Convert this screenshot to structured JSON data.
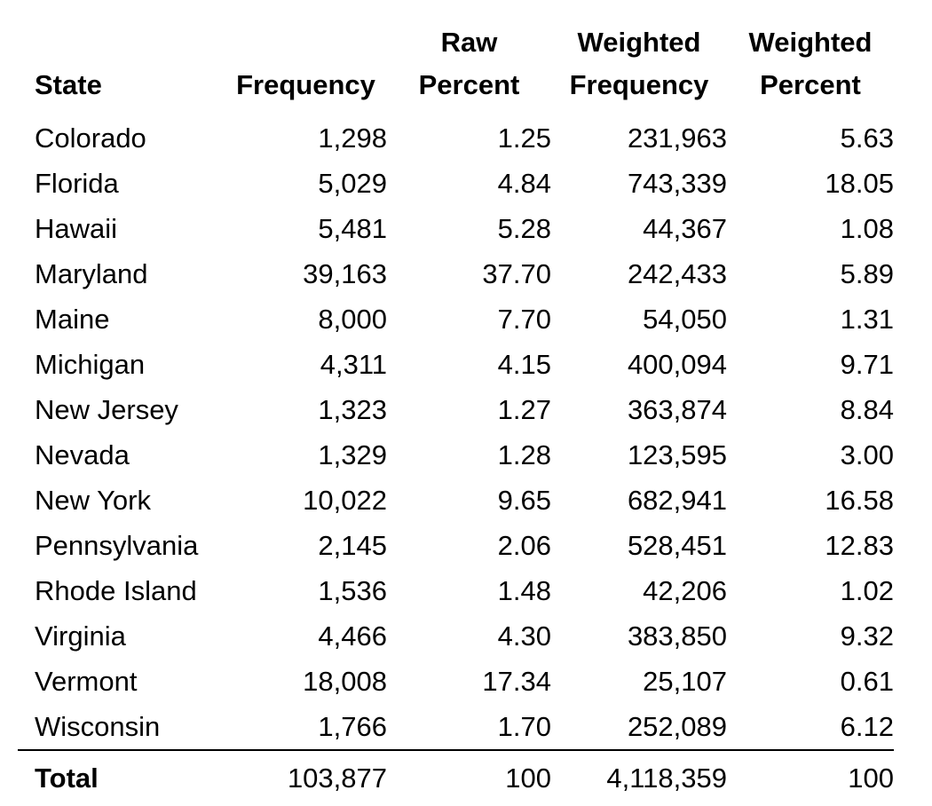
{
  "table": {
    "headers": {
      "state": "State",
      "frequency": "Frequency",
      "raw_percent": [
        "Raw",
        "Percent"
      ],
      "weighted_frequency": [
        "Weighted",
        "Frequency"
      ],
      "weighted_percent": [
        "Weighted",
        "Percent"
      ]
    },
    "rows": [
      {
        "state": "Colorado",
        "frequency": "1,298",
        "raw_percent": "1.25",
        "weighted_frequency": "231,963",
        "weighted_percent": "5.63"
      },
      {
        "state": "Florida",
        "frequency": "5,029",
        "raw_percent": "4.84",
        "weighted_frequency": "743,339",
        "weighted_percent": "18.05"
      },
      {
        "state": "Hawaii",
        "frequency": "5,481",
        "raw_percent": "5.28",
        "weighted_frequency": "44,367",
        "weighted_percent": "1.08"
      },
      {
        "state": "Maryland",
        "frequency": "39,163",
        "raw_percent": "37.70",
        "weighted_frequency": "242,433",
        "weighted_percent": "5.89"
      },
      {
        "state": "Maine",
        "frequency": "8,000",
        "raw_percent": "7.70",
        "weighted_frequency": "54,050",
        "weighted_percent": "1.31"
      },
      {
        "state": "Michigan",
        "frequency": "4,311",
        "raw_percent": "4.15",
        "weighted_frequency": "400,094",
        "weighted_percent": "9.71"
      },
      {
        "state": "New Jersey",
        "frequency": "1,323",
        "raw_percent": "1.27",
        "weighted_frequency": "363,874",
        "weighted_percent": "8.84"
      },
      {
        "state": "Nevada",
        "frequency": "1,329",
        "raw_percent": "1.28",
        "weighted_frequency": "123,595",
        "weighted_percent": "3.00"
      },
      {
        "state": "New York",
        "frequency": "10,022",
        "raw_percent": "9.65",
        "weighted_frequency": "682,941",
        "weighted_percent": "16.58"
      },
      {
        "state": "Pennsylvania",
        "frequency": "2,145",
        "raw_percent": "2.06",
        "weighted_frequency": "528,451",
        "weighted_percent": "12.83"
      },
      {
        "state": "Rhode Island",
        "frequency": "1,536",
        "raw_percent": "1.48",
        "weighted_frequency": "42,206",
        "weighted_percent": "1.02"
      },
      {
        "state": "Virginia",
        "frequency": "4,466",
        "raw_percent": "4.30",
        "weighted_frequency": "383,850",
        "weighted_percent": "9.32"
      },
      {
        "state": "Vermont",
        "frequency": "18,008",
        "raw_percent": "17.34",
        "weighted_frequency": "25,107",
        "weighted_percent": "0.61"
      },
      {
        "state": "Wisconsin",
        "frequency": "1,766",
        "raw_percent": "1.70",
        "weighted_frequency": "252,089",
        "weighted_percent": "6.12"
      }
    ],
    "total": {
      "state": "Total",
      "frequency": "103,877",
      "raw_percent": "100",
      "weighted_frequency": "4,118,359",
      "weighted_percent": "100"
    }
  }
}
